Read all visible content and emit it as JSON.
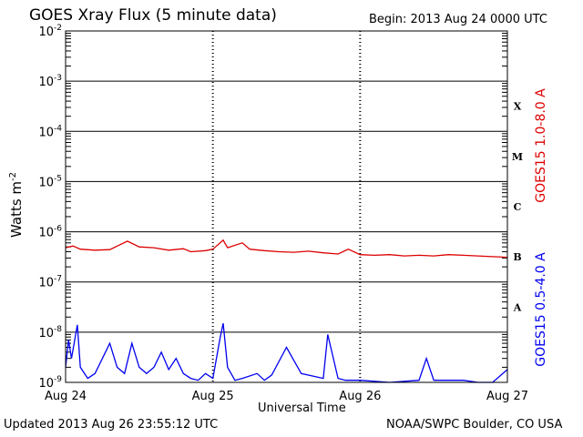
{
  "header": {
    "title": "GOES Xray Flux (5 minute data)",
    "begin": "Begin:  2013 Aug 24 0000 UTC"
  },
  "footer": {
    "updated": "Updated 2013 Aug 26 23:55:12 UTC",
    "credit": "NOAA/SWPC Boulder, CO USA"
  },
  "chart_data": {
    "type": "line",
    "title": "GOES Xray Flux (5 minute data)",
    "xlabel": "Universal Time",
    "ylabel": "Watts m",
    "ylabel_superscript": "-2",
    "yscale": "log",
    "ylim": [
      1e-09,
      0.01
    ],
    "ytick_base": "10",
    "ytick_exponents": [
      "-9",
      "-8",
      "-7",
      "-6",
      "-5",
      "-4",
      "-3",
      "-2"
    ],
    "xlim": [
      "2013-08-24",
      "2013-08-27"
    ],
    "xticks": [
      "Aug 24",
      "Aug 25",
      "Aug 26",
      "Aug 27"
    ],
    "flare_classes": [
      {
        "label": "A",
        "flux": 1e-08
      },
      {
        "label": "B",
        "flux": 1e-07
      },
      {
        "label": "C",
        "flux": 1e-06
      },
      {
        "label": "M",
        "flux": 1e-05
      },
      {
        "label": "X",
        "flux": 0.0001
      }
    ],
    "grid": true,
    "series": [
      {
        "name": "GOES15 1.0-8.0 A",
        "color": "#dd0000",
        "x_days": [
          0,
          0.05,
          0.1,
          0.2,
          0.3,
          0.42,
          0.5,
          0.6,
          0.7,
          0.8,
          0.85,
          0.95,
          1.0,
          1.07,
          1.1,
          1.2,
          1.25,
          1.35,
          1.45,
          1.55,
          1.65,
          1.75,
          1.85,
          1.92,
          2.0,
          2.1,
          2.2,
          2.3,
          2.4,
          2.5,
          2.6,
          2.7,
          2.8,
          2.9,
          3.0
        ],
        "values": [
          4.8e-07,
          5.2e-07,
          4.5e-07,
          4.3e-07,
          4.4e-07,
          6.5e-07,
          5e-07,
          4.8e-07,
          4.3e-07,
          4.6e-07,
          4e-07,
          4.2e-07,
          4.5e-07,
          6.8e-07,
          4.8e-07,
          6e-07,
          4.5e-07,
          4.2e-07,
          4e-07,
          3.9e-07,
          4.1e-07,
          3.8e-07,
          3.6e-07,
          4.5e-07,
          3.5e-07,
          3.4e-07,
          3.5e-07,
          3.3e-07,
          3.4e-07,
          3.3e-07,
          3.5e-07,
          3.4e-07,
          3.3e-07,
          3.2e-07,
          3.1e-07
        ]
      },
      {
        "name": "GOES15 0.5-4.0 A",
        "color": "#0000ee",
        "x_days": [
          0,
          0.02,
          0.04,
          0.08,
          0.1,
          0.15,
          0.2,
          0.3,
          0.35,
          0.4,
          0.45,
          0.5,
          0.55,
          0.6,
          0.65,
          0.7,
          0.75,
          0.8,
          0.85,
          0.9,
          0.95,
          1.0,
          1.05,
          1.07,
          1.1,
          1.15,
          1.2,
          1.3,
          1.35,
          1.4,
          1.5,
          1.6,
          1.75,
          1.78,
          1.85,
          1.9,
          2.0,
          2.2,
          2.4,
          2.45,
          2.5,
          2.7,
          2.8,
          2.9,
          3.0
        ],
        "values": [
          2e-09,
          7e-09,
          3e-09,
          1.4e-08,
          2e-09,
          1.2e-09,
          1.5e-09,
          6e-09,
          2e-09,
          1.5e-09,
          6e-09,
          2e-09,
          1.5e-09,
          2e-09,
          4e-09,
          1.8e-09,
          3e-09,
          1.5e-09,
          1.2e-09,
          1.1e-09,
          1.5e-09,
          1.2e-09,
          8e-09,
          1.5e-08,
          2e-09,
          1.1e-09,
          1.2e-09,
          1.5e-09,
          1.1e-09,
          1.4e-09,
          5e-09,
          1.5e-09,
          1.2e-09,
          9e-09,
          1.2e-09,
          1.1e-09,
          1.1e-09,
          1e-09,
          1.1e-09,
          3e-09,
          1.1e-09,
          1.1e-09,
          1e-09,
          1e-09,
          1.8e-09
        ]
      }
    ]
  }
}
